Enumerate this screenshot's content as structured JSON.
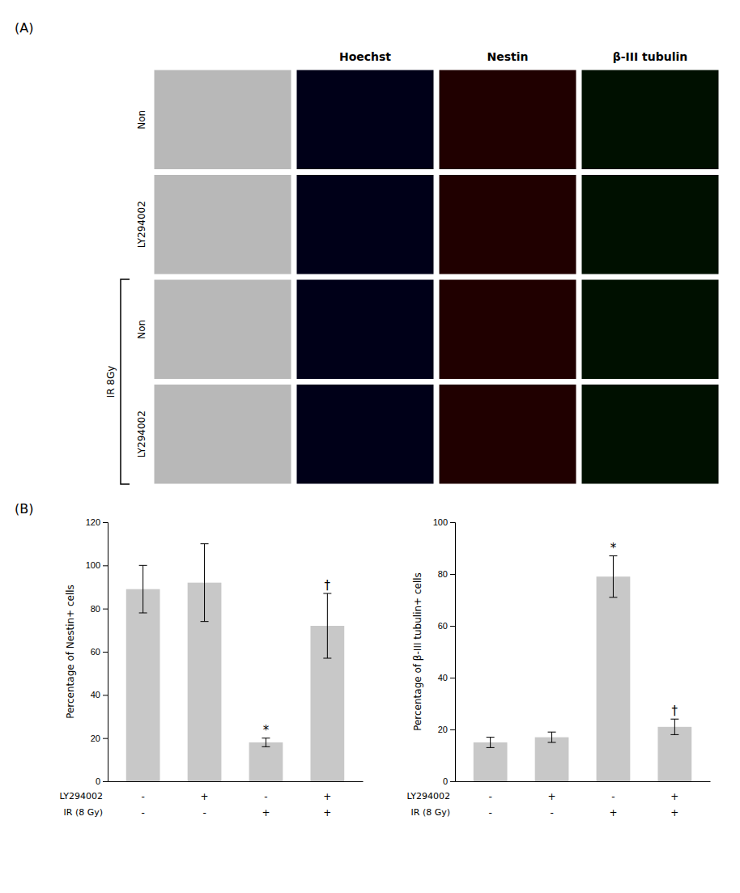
{
  "chart_data": [
    {
      "type": "image_grid",
      "title": "(A)",
      "categories": [
        null,
        "Hoechst",
        "Nestin",
        "β-III tubulin"
      ],
      "rows": [
        "Non",
        "LY294002",
        "Non",
        "LY294002"
      ],
      "colors": [
        "#b8b8b8",
        "#000018",
        "#200000",
        "#001000"
      ],
      "annotations": [
        {
          "text": "IR 8Gy",
          "rows": [
            2,
            3
          ]
        }
      ]
    },
    {
      "type": "bar",
      "title": "(B)",
      "x_labels": [
        {
          "name": "LY294002",
          "labels": [
            "-",
            "+",
            "-",
            "+"
          ]
        },
        {
          "name": "IR (8 Gy)",
          "labels": [
            "-",
            "-",
            "+",
            "+"
          ]
        }
      ],
      "values": [
        89,
        92,
        18,
        72
      ],
      "errors": [
        11,
        18,
        2,
        15
      ],
      "annotations": [
        null,
        null,
        "*",
        "†"
      ],
      "color": "#c8c8c8",
      "ylabel": "Percentage of Nestin+ cells",
      "ylim": [
        0,
        120
      ],
      "yticks": [
        0,
        20,
        40,
        60,
        80,
        100,
        120
      ]
    },
    {
      "type": "bar",
      "x_labels": [
        {
          "name": "LY294002",
          "labels": [
            "-",
            "+",
            "-",
            "+"
          ]
        },
        {
          "name": "IR (8 Gy)",
          "labels": [
            "-",
            "-",
            "+",
            "+"
          ]
        }
      ],
      "values": [
        15,
        17,
        79,
        21
      ],
      "errors": [
        2,
        2,
        8,
        3
      ],
      "annotations": [
        null,
        null,
        "*",
        "†"
      ],
      "color": "#c8c8c8",
      "ylabel": "Percentage of β-III tubulin+ cells",
      "ylim": [
        0,
        100
      ],
      "yticks": [
        0,
        20,
        40,
        60,
        80,
        100
      ]
    }
  ]
}
